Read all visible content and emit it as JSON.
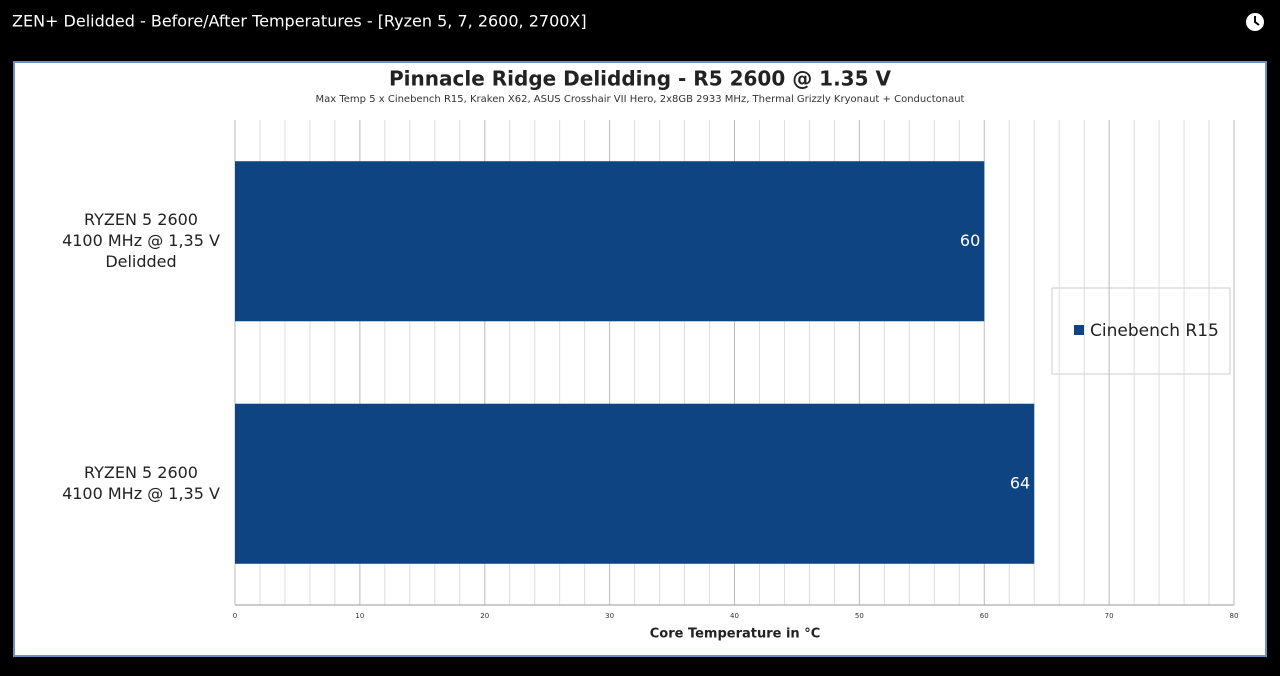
{
  "video_title": "ZEN+ Delidded - Before/After Temperatures - [Ryzen 5, 7, 2600, 2700X]",
  "chart_data": {
    "type": "bar",
    "orientation": "horizontal",
    "title": "Pinnacle Ridge Delidding - R5 2600 @ 1.35 V",
    "subtitle": "Max Temp 5 x Cinebench R15, Kraken X62, ASUS Crosshair VII Hero,  2x8GB 2933 MHz, Thermal Grizzly Kryonaut + Conductonaut",
    "x_label": "Core Temperature in °C",
    "categories": [
      [
        "RYZEN 5 2600",
        "4100 MHz @ 1,35 V",
        "Delidded"
      ],
      [
        "RYZEN 5 2600",
        "4100 MHz @ 1,35 V"
      ]
    ],
    "series": [
      {
        "name": "Cinebench R15",
        "color": "#0f4482",
        "values": [
          60,
          64
        ]
      }
    ],
    "xlim": [
      0,
      80
    ],
    "xticks": [
      0,
      10,
      20,
      30,
      40,
      50,
      60,
      70,
      80
    ],
    "minor_xticks": [
      2,
      4,
      6,
      8,
      12,
      14,
      16,
      18,
      22,
      24,
      26,
      28,
      32,
      34,
      36,
      38,
      42,
      44,
      46,
      48,
      52,
      54,
      56,
      58,
      62,
      64,
      66,
      68,
      72,
      74,
      76,
      78
    ],
    "grid": true,
    "legend": "right"
  }
}
